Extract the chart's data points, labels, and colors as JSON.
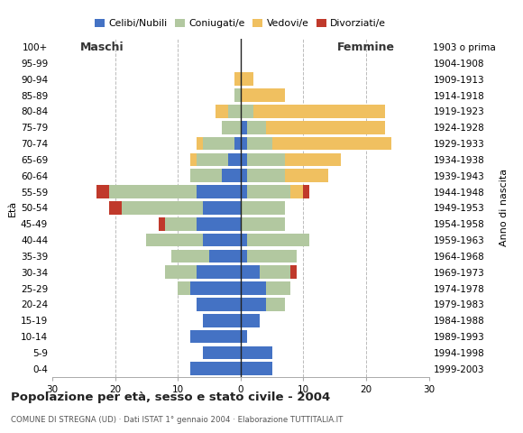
{
  "age_groups": [
    "0-4",
    "5-9",
    "10-14",
    "15-19",
    "20-24",
    "25-29",
    "30-34",
    "35-39",
    "40-44",
    "45-49",
    "50-54",
    "55-59",
    "60-64",
    "65-69",
    "70-74",
    "75-79",
    "80-84",
    "85-89",
    "90-94",
    "95-99",
    "100+"
  ],
  "birth_years": [
    "1999-2003",
    "1994-1998",
    "1989-1993",
    "1984-1988",
    "1979-1983",
    "1974-1978",
    "1969-1973",
    "1964-1968",
    "1959-1963",
    "1954-1958",
    "1949-1953",
    "1944-1948",
    "1939-1943",
    "1934-1938",
    "1929-1933",
    "1924-1928",
    "1919-1923",
    "1914-1918",
    "1909-1913",
    "1904-1908",
    "1903 o prima"
  ],
  "males": {
    "celibi": [
      8,
      6,
      8,
      6,
      7,
      8,
      7,
      5,
      6,
      7,
      6,
      7,
      3,
      2,
      1,
      0,
      0,
      0,
      0,
      0,
      0
    ],
    "coniugati": [
      0,
      0,
      0,
      0,
      0,
      2,
      5,
      6,
      9,
      5,
      13,
      14,
      5,
      5,
      5,
      3,
      2,
      1,
      0,
      0,
      0
    ],
    "vedovi": [
      0,
      0,
      0,
      0,
      0,
      0,
      0,
      0,
      0,
      0,
      0,
      0,
      0,
      1,
      1,
      0,
      2,
      0,
      1,
      0,
      0
    ],
    "divorziati": [
      0,
      0,
      0,
      0,
      0,
      0,
      0,
      0,
      0,
      1,
      2,
      2,
      0,
      0,
      0,
      0,
      0,
      0,
      0,
      0,
      0
    ]
  },
  "females": {
    "nubili": [
      5,
      5,
      1,
      3,
      4,
      4,
      3,
      1,
      1,
      0,
      0,
      1,
      1,
      1,
      1,
      1,
      0,
      0,
      0,
      0,
      0
    ],
    "coniugate": [
      0,
      0,
      0,
      0,
      3,
      4,
      5,
      8,
      10,
      7,
      7,
      7,
      6,
      6,
      4,
      3,
      2,
      0,
      0,
      0,
      0
    ],
    "vedove": [
      0,
      0,
      0,
      0,
      0,
      0,
      0,
      0,
      0,
      0,
      0,
      2,
      7,
      9,
      19,
      19,
      21,
      7,
      2,
      0,
      0
    ],
    "divorziate": [
      0,
      0,
      0,
      0,
      0,
      0,
      1,
      0,
      0,
      0,
      0,
      1,
      0,
      0,
      0,
      0,
      0,
      0,
      0,
      0,
      0
    ]
  },
  "colors": {
    "celibi": "#4472c4",
    "coniugati": "#b2c8a0",
    "vedovi": "#f0c060",
    "divorziati": "#c0392b"
  },
  "title": "Popolazione per età, sesso e stato civile - 2004",
  "subtitle": "COMUNE DI STREGNA (UD) · Dati ISTAT 1° gennaio 2004 · Elaborazione TUTTITALIA.IT",
  "legend_labels": [
    "Celibi/Nubili",
    "Coniugati/e",
    "Vedovi/e",
    "Divorziati/e"
  ],
  "xlim": 30,
  "background_color": "#ffffff",
  "grid_color": "#bbbbbb"
}
